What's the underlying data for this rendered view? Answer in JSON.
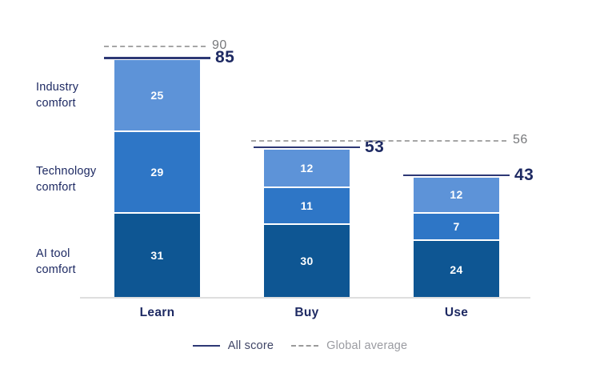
{
  "chart_data": {
    "type": "bar",
    "stacked": true,
    "categories": [
      "Learn",
      "Buy",
      "Use"
    ],
    "series": [
      {
        "name": "Industry comfort",
        "values": [
          25,
          12,
          12
        ],
        "color": "#5d93d8"
      },
      {
        "name": "Technology comfort",
        "values": [
          29,
          11,
          7
        ],
        "color": "#2e76c6"
      },
      {
        "name": "AI tool comfort",
        "values": [
          31,
          30,
          24
        ],
        "color": "#0e5693"
      }
    ],
    "totals": {
      "name": "All score",
      "values": [
        85,
        53,
        43
      ]
    },
    "global_averages": [
      {
        "value": 90,
        "span": "Learn"
      },
      {
        "value": 56,
        "span": "Buy-Use"
      }
    ],
    "ylim": [
      0,
      95
    ],
    "grid": false,
    "legend_position": "bottom-center",
    "legend": [
      {
        "label": "All score",
        "style": "solid"
      },
      {
        "label": "Global average",
        "style": "dashed"
      }
    ],
    "row_labels": [
      "Industry\ncomfort",
      "Technology\ncomfort",
      "AI tool\ncomfort"
    ]
  },
  "colors": {
    "navy_text": "#1e2a63",
    "score_line": "#2d3875",
    "average_line": "#a6a6a6",
    "average_text": "#77787b",
    "axis": "#dedede",
    "segment_dark": "#0e5693",
    "segment_medium": "#2e76c6",
    "segment_light": "#5d93d8"
  }
}
